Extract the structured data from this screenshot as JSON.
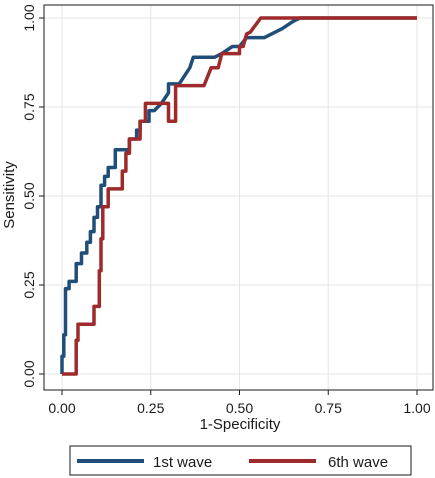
{
  "chart_data": {
    "type": "line",
    "title": "",
    "xlabel": "1-Specificity",
    "ylabel": "Sensitivity",
    "xlim": [
      0,
      1
    ],
    "ylim": [
      0,
      1
    ],
    "x_ticks": [
      0,
      0.25,
      0.5,
      0.75,
      1
    ],
    "x_tick_labels": [
      "0.00",
      "0.25",
      "0.50",
      "0.75",
      "1.00"
    ],
    "y_ticks": [
      0,
      0.25,
      0.5,
      0.75,
      1
    ],
    "y_tick_labels": [
      "0.00",
      "0.25",
      "0.50",
      "0.75",
      "1.00"
    ],
    "grid": true,
    "legend": {
      "position": "bottom"
    },
    "series": [
      {
        "name": "1st wave",
        "color": "#1f4e79",
        "points": [
          [
            0.0,
            0.0
          ],
          [
            0.0,
            0.05
          ],
          [
            0.005,
            0.05
          ],
          [
            0.005,
            0.11
          ],
          [
            0.01,
            0.11
          ],
          [
            0.01,
            0.24
          ],
          [
            0.02,
            0.24
          ],
          [
            0.02,
            0.26
          ],
          [
            0.04,
            0.26
          ],
          [
            0.04,
            0.31
          ],
          [
            0.055,
            0.31
          ],
          [
            0.055,
            0.34
          ],
          [
            0.07,
            0.34
          ],
          [
            0.07,
            0.37
          ],
          [
            0.08,
            0.37
          ],
          [
            0.08,
            0.4
          ],
          [
            0.09,
            0.4
          ],
          [
            0.09,
            0.44
          ],
          [
            0.1,
            0.44
          ],
          [
            0.1,
            0.47
          ],
          [
            0.11,
            0.47
          ],
          [
            0.11,
            0.53
          ],
          [
            0.12,
            0.53
          ],
          [
            0.12,
            0.555
          ],
          [
            0.13,
            0.555
          ],
          [
            0.13,
            0.58
          ],
          [
            0.15,
            0.58
          ],
          [
            0.15,
            0.63
          ],
          [
            0.19,
            0.63
          ],
          [
            0.19,
            0.66
          ],
          [
            0.21,
            0.66
          ],
          [
            0.21,
            0.685
          ],
          [
            0.22,
            0.685
          ],
          [
            0.22,
            0.71
          ],
          [
            0.245,
            0.71
          ],
          [
            0.245,
            0.74
          ],
          [
            0.26,
            0.74
          ],
          [
            0.28,
            0.76
          ],
          [
            0.3,
            0.79
          ],
          [
            0.3,
            0.815
          ],
          [
            0.33,
            0.815
          ],
          [
            0.36,
            0.86
          ],
          [
            0.37,
            0.89
          ],
          [
            0.43,
            0.89
          ],
          [
            0.45,
            0.9
          ],
          [
            0.48,
            0.92
          ],
          [
            0.5,
            0.92
          ],
          [
            0.52,
            0.945
          ],
          [
            0.57,
            0.945
          ],
          [
            0.62,
            0.97
          ],
          [
            0.65,
            0.99
          ],
          [
            0.67,
            1.0
          ],
          [
            1.0,
            1.0
          ]
        ]
      },
      {
        "name": "6th wave",
        "color": "#9e2a2b",
        "points": [
          [
            0.0,
            0.0
          ],
          [
            0.04,
            0.0
          ],
          [
            0.04,
            0.095
          ],
          [
            0.045,
            0.095
          ],
          [
            0.045,
            0.14
          ],
          [
            0.09,
            0.14
          ],
          [
            0.09,
            0.19
          ],
          [
            0.105,
            0.19
          ],
          [
            0.105,
            0.29
          ],
          [
            0.11,
            0.29
          ],
          [
            0.11,
            0.38
          ],
          [
            0.115,
            0.38
          ],
          [
            0.115,
            0.47
          ],
          [
            0.13,
            0.47
          ],
          [
            0.13,
            0.52
          ],
          [
            0.17,
            0.52
          ],
          [
            0.17,
            0.57
          ],
          [
            0.18,
            0.57
          ],
          [
            0.18,
            0.62
          ],
          [
            0.19,
            0.62
          ],
          [
            0.19,
            0.66
          ],
          [
            0.22,
            0.66
          ],
          [
            0.22,
            0.71
          ],
          [
            0.235,
            0.71
          ],
          [
            0.235,
            0.76
          ],
          [
            0.3,
            0.76
          ],
          [
            0.3,
            0.71
          ],
          [
            0.32,
            0.71
          ],
          [
            0.32,
            0.81
          ],
          [
            0.4,
            0.81
          ],
          [
            0.42,
            0.86
          ],
          [
            0.44,
            0.86
          ],
          [
            0.45,
            0.9
          ],
          [
            0.5,
            0.9
          ],
          [
            0.5,
            0.92
          ],
          [
            0.51,
            0.92
          ],
          [
            0.52,
            0.955
          ],
          [
            0.53,
            0.96
          ],
          [
            0.56,
            1.0
          ],
          [
            1.0,
            1.0
          ]
        ]
      }
    ]
  }
}
